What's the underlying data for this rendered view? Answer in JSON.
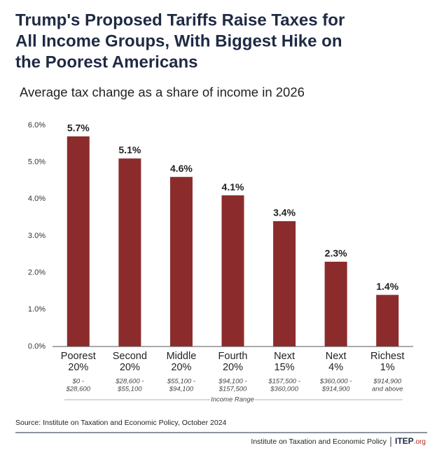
{
  "chart_data": {
    "type": "bar",
    "title": [
      "Trump's Proposed Tariffs Raise Taxes for",
      "All Income Groups, With Biggest Hike on",
      "the Poorest Americans"
    ],
    "subtitle": "Average tax change as a share of income in 2026",
    "categories": [
      [
        "Poorest",
        "20%"
      ],
      [
        "Second",
        "20%"
      ],
      [
        "Middle",
        "20%"
      ],
      [
        "Fourth",
        "20%"
      ],
      [
        "Next",
        "15%"
      ],
      [
        "Next",
        "4%"
      ],
      [
        "Richest",
        "1%"
      ]
    ],
    "income_ranges": [
      [
        "$0 -",
        "$28,600"
      ],
      [
        "$28,600 -",
        "$55,100"
      ],
      [
        "$55,100 -",
        "$94,100"
      ],
      [
        "$94,100 -",
        "$157,500"
      ],
      [
        "$157,500 -",
        "$360,000"
      ],
      [
        "$360,000 -",
        "$914,900"
      ],
      [
        "$914,900",
        "and above"
      ]
    ],
    "income_range_label": "Income Range",
    "values": [
      5.7,
      5.1,
      4.6,
      4.1,
      3.4,
      2.3,
      1.4
    ],
    "value_labels": [
      "5.7%",
      "5.1%",
      "4.6%",
      "4.1%",
      "3.4%",
      "2.3%",
      "1.4%"
    ],
    "color": "#8c2b2b",
    "ylim": [
      0,
      6
    ],
    "yticks": [
      {
        "value": 0,
        "label": "0.0%"
      },
      {
        "value": 1,
        "label": "1.0%"
      },
      {
        "value": 2,
        "label": "2.0%"
      },
      {
        "value": 3,
        "label": "3.0%"
      },
      {
        "value": 4,
        "label": "4.0%"
      },
      {
        "value": 5,
        "label": "5.0%"
      },
      {
        "value": 6,
        "label": "6.0%"
      }
    ],
    "source": "Source: Institute on Taxation and Economic Policy, October 2024",
    "footer_org": "Institute on Taxation and Economic Policy",
    "footer_logo": "ITEP",
    "footer_logo_suffix": ".org"
  }
}
